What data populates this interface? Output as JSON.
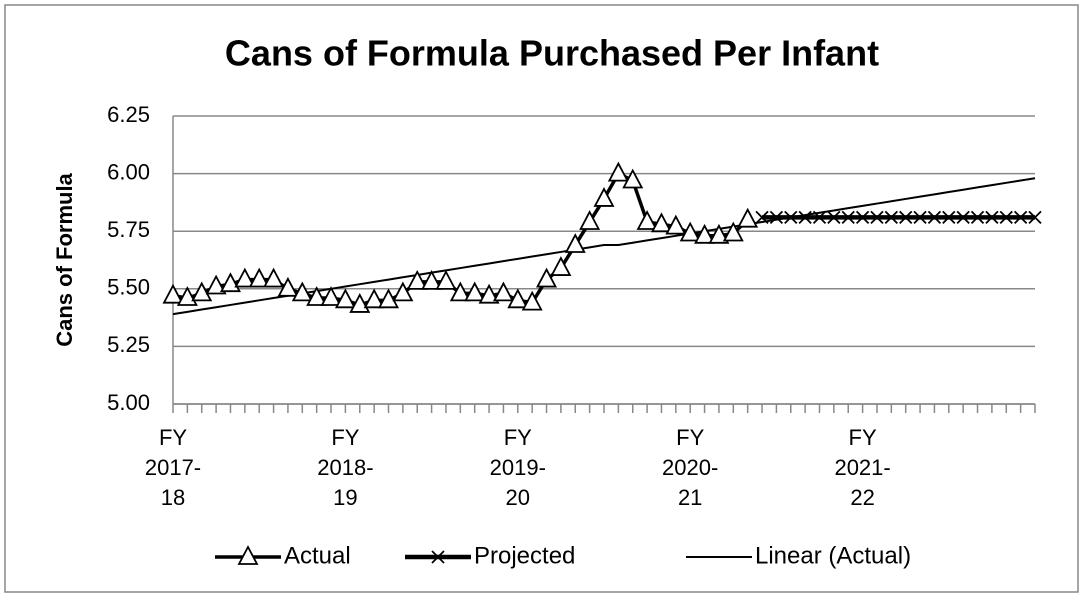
{
  "chart_data": {
    "type": "line",
    "title": "Cans of Formula Purchased Per Infant",
    "y_label": "Cans of Formula",
    "categories": [
      "FY 2017-18",
      null,
      null,
      null,
      null,
      null,
      null,
      null,
      null,
      null,
      null,
      null,
      "FY 2018-19",
      null,
      null,
      null,
      null,
      null,
      null,
      null,
      null,
      null,
      null,
      null,
      "FY 2019-20",
      null,
      null,
      null,
      null,
      null,
      null,
      null,
      null,
      null,
      null,
      null,
      "FY 2020-21",
      null,
      null,
      null,
      null,
      null,
      null,
      null,
      null,
      null,
      null,
      null,
      "FY 2021-22",
      null,
      null,
      null,
      null,
      null,
      null,
      null,
      null,
      null,
      null,
      null,
      null
    ],
    "ylim": [
      5,
      6.25
    ],
    "yticks": [
      {
        "value": 5,
        "label": "5.00"
      },
      {
        "value": 5.25,
        "label": "5.25"
      },
      {
        "value": 5.5,
        "label": "5.50"
      },
      {
        "value": 5.75,
        "label": "5.75"
      },
      {
        "value": 6,
        "label": "6.00"
      },
      {
        "value": 6.25,
        "label": "6.25"
      }
    ],
    "grid": true,
    "legend": "bottom",
    "series": [
      {
        "name": "Actual",
        "color": "#000000",
        "marker": "triangle",
        "values": [
          5.47,
          5.46,
          5.48,
          5.51,
          5.52,
          5.54,
          5.54,
          5.54,
          5.5,
          5.48,
          5.46,
          5.46,
          5.45,
          5.43,
          5.45,
          5.45,
          5.48,
          5.53,
          5.53,
          5.53,
          5.48,
          5.48,
          5.47,
          5.48,
          5.45,
          5.44,
          5.54,
          5.59,
          5.69,
          5.79,
          5.89,
          6.0,
          5.97,
          5.79,
          5.78,
          5.77,
          5.74,
          5.73,
          5.73,
          5.74,
          5.8,
          null,
          null,
          null,
          null,
          null,
          null,
          null,
          null,
          null,
          null,
          null,
          null,
          null,
          null,
          null,
          null,
          null,
          null,
          null,
          null
        ]
      },
      {
        "name": "Projected",
        "color": "#000000",
        "marker": "x",
        "values": [
          null,
          null,
          null,
          null,
          null,
          null,
          null,
          null,
          null,
          null,
          null,
          null,
          null,
          null,
          null,
          null,
          null,
          null,
          null,
          null,
          null,
          null,
          null,
          null,
          null,
          null,
          null,
          null,
          null,
          null,
          null,
          null,
          null,
          null,
          null,
          null,
          null,
          null,
          null,
          null,
          null,
          5.81,
          5.81,
          5.81,
          5.81,
          5.81,
          5.81,
          5.81,
          5.81,
          5.81,
          5.81,
          5.81,
          5.81,
          5.81,
          5.81,
          5.81,
          5.81,
          5.81,
          5.81,
          5.81,
          5.81
        ]
      },
      {
        "name": "Linear (Actual)",
        "color": "#000000",
        "marker": "none",
        "values": [
          5.39,
          5.4,
          5.41,
          5.42,
          5.43,
          5.44,
          5.45,
          5.46,
          5.47,
          5.48,
          5.49,
          5.5,
          5.51,
          5.52,
          5.53,
          5.54,
          5.55,
          5.56,
          5.57,
          5.58,
          5.59,
          5.6,
          5.61,
          5.62,
          5.63,
          5.64,
          5.65,
          5.66,
          5.67,
          5.68,
          5.69,
          5.69,
          5.7,
          5.71,
          5.72,
          5.73,
          5.74,
          5.75,
          5.76,
          5.77,
          5.78,
          5.79,
          5.8,
          5.81,
          5.82,
          5.83,
          5.84,
          5.85,
          5.86,
          5.87,
          5.88,
          5.89,
          5.9,
          5.91,
          5.92,
          5.93,
          5.94,
          5.95,
          5.96,
          5.97,
          5.98
        ]
      }
    ]
  }
}
